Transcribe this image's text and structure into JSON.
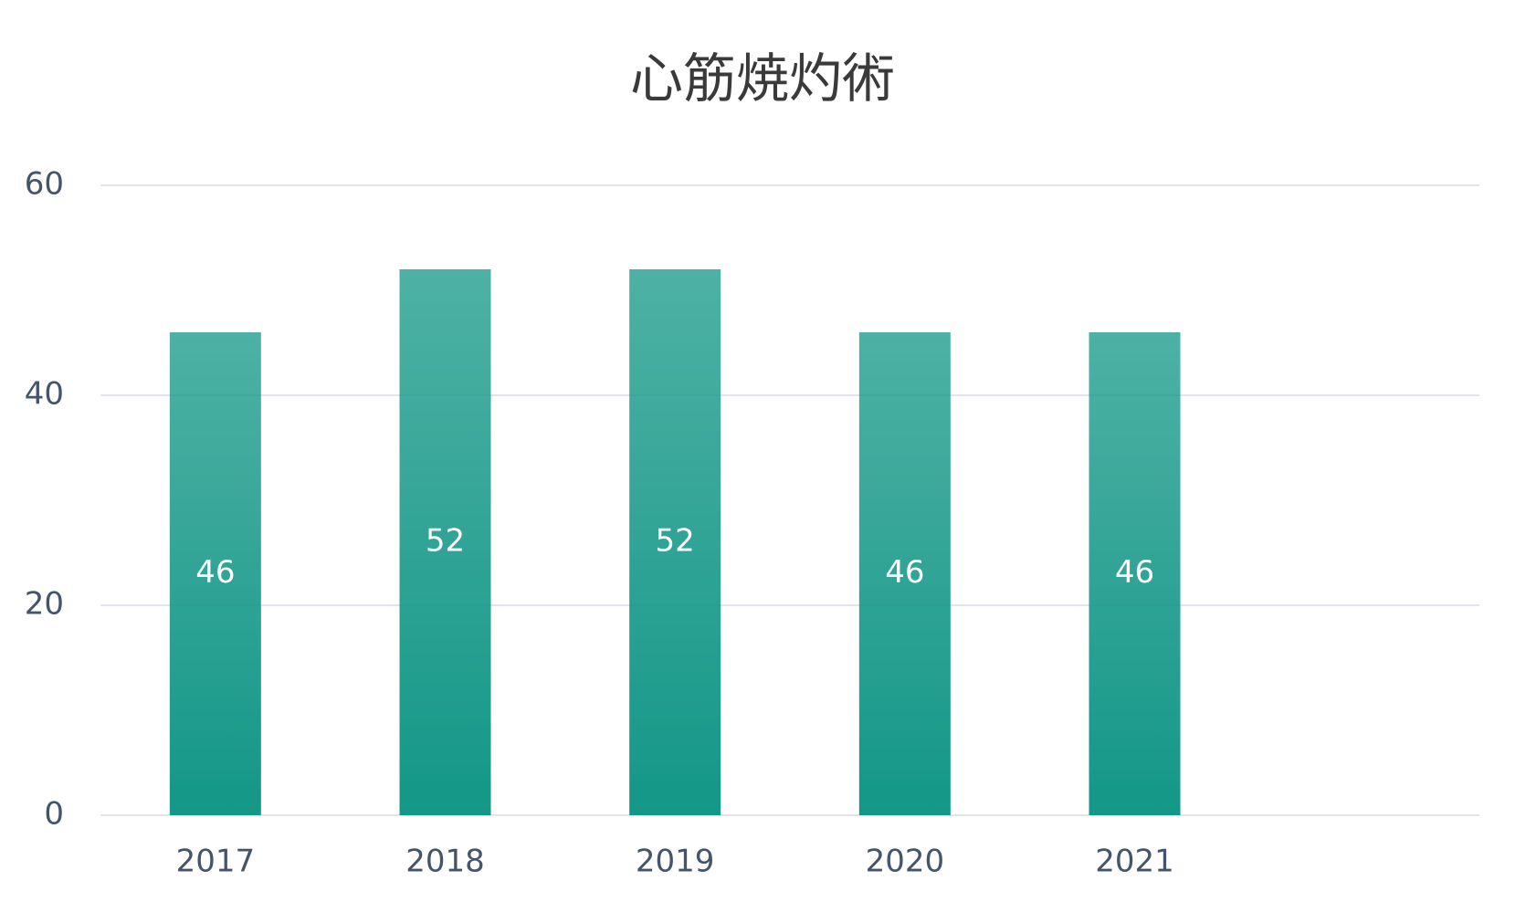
{
  "chart_data": {
    "type": "bar",
    "title": "心筋焼灼術",
    "categories": [
      "2017",
      "2018",
      "2019",
      "2020",
      "2021",
      null
    ],
    "values": [
      46,
      52,
      52,
      46,
      46,
      null
    ],
    "color": "#139787",
    "ylim": [
      0,
      60
    ],
    "yticks": [
      0,
      20,
      40,
      60
    ],
    "grid": true
  }
}
